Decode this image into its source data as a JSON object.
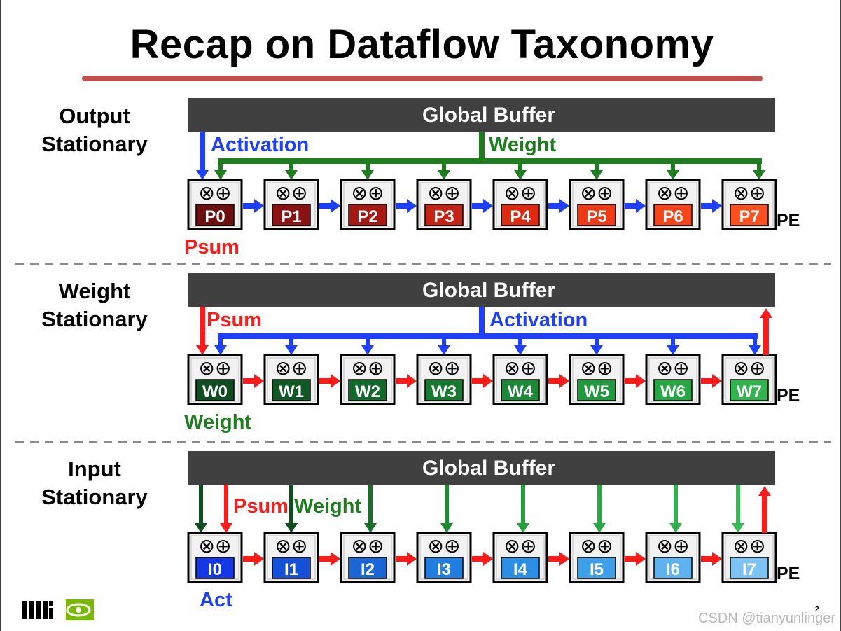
{
  "title": "Recap on Dataflow Taxonomy",
  "watermark": "CSDN @tianyunlinger",
  "page_number": "2",
  "logos": [
    "MIT",
    "NVIDIA"
  ],
  "pe_op_symbols": "⊗⊕",
  "colors": {
    "title_underline": "#c0504d",
    "buffer_bar": "#404040",
    "activation_arrow": "#1f3fff",
    "weight_arrow": "#1e7d1e",
    "psum_arrow": "#ff1a1a"
  },
  "sections": [
    {
      "id": "output-stationary",
      "label_line1": "Output",
      "label_line2": "Stationary",
      "buffer_label": "Global Buffer",
      "pe_label": "PE",
      "bottom_label": "Psum",
      "bottom_label_color": "#ff1a1a",
      "arrow_labels": [
        {
          "text": "Activation",
          "color": "#1f3fff"
        },
        {
          "text": "Weight",
          "color": "#1e7d1e"
        }
      ],
      "pes": [
        {
          "label": "P0",
          "color": "#6b0f0f"
        },
        {
          "label": "P1",
          "color": "#8a1212"
        },
        {
          "label": "P2",
          "color": "#a81812"
        },
        {
          "label": "P3",
          "color": "#c42212"
        },
        {
          "label": "P4",
          "color": "#e02a10"
        },
        {
          "label": "P5",
          "color": "#f03a14"
        },
        {
          "label": "P6",
          "color": "#f84418"
        },
        {
          "label": "P7",
          "color": "#ff4f1f"
        }
      ]
    },
    {
      "id": "weight-stationary",
      "label_line1": "Weight",
      "label_line2": "Stationary",
      "buffer_label": "Global Buffer",
      "pe_label": "PE",
      "bottom_label": "Weight",
      "bottom_label_color": "#1e7d1e",
      "arrow_labels": [
        {
          "text": "Psum",
          "color": "#ff1a1a"
        },
        {
          "text": "Activation",
          "color": "#1f3fff"
        }
      ],
      "pes": [
        {
          "label": "W0",
          "color": "#0d4d1f"
        },
        {
          "label": "W1",
          "color": "#0f5a24"
        },
        {
          "label": "W2",
          "color": "#126a2a"
        },
        {
          "label": "W3",
          "color": "#167a30"
        },
        {
          "label": "W4",
          "color": "#1a8a36"
        },
        {
          "label": "W5",
          "color": "#1f9a3c"
        },
        {
          "label": "W6",
          "color": "#25a843"
        },
        {
          "label": "W7",
          "color": "#2fb54c"
        }
      ]
    },
    {
      "id": "input-stationary",
      "label_line1": "Input",
      "label_line2": "Stationary",
      "buffer_label": "Global Buffer",
      "pe_label": "PE",
      "bottom_label": "Act",
      "bottom_label_color": "#1f3fff",
      "arrow_labels": [
        {
          "text": "Psum",
          "color": "#ff1a1a"
        },
        {
          "text": "Weight",
          "color": "#1e7d1e"
        }
      ],
      "pes": [
        {
          "label": "I0",
          "color": "#1438e6"
        },
        {
          "label": "I1",
          "color": "#1550d8"
        },
        {
          "label": "I2",
          "color": "#1a66d6"
        },
        {
          "label": "I3",
          "color": "#1f7ee0"
        },
        {
          "label": "I4",
          "color": "#2a90e6"
        },
        {
          "label": "I5",
          "color": "#3fa0ea"
        },
        {
          "label": "I6",
          "color": "#5eb2ee"
        },
        {
          "label": "I7",
          "color": "#7cc2f2"
        }
      ]
    }
  ]
}
